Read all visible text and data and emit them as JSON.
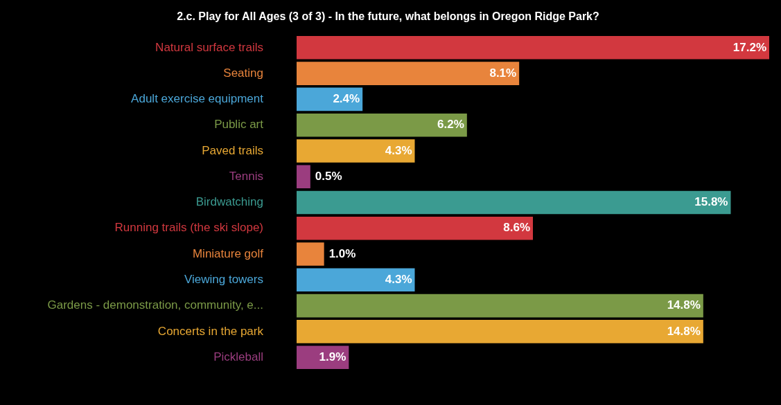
{
  "chart_data": {
    "type": "bar",
    "orientation": "horizontal",
    "title": "2.c. Play for All Ages (3 of 3) - In the future, what belongs in Oregon Ridge Park?",
    "categories": [
      "Natural surface trails",
      "Seating",
      "Adult exercise equipment",
      "Public art",
      "Paved trails",
      "Tennis",
      "Birdwatching",
      "Running trails (the ski slope)",
      "Miniature golf",
      "Viewing towers",
      "Gardens - demonstration, community, e...",
      "Concerts in the park",
      "Pickleball"
    ],
    "values": [
      17.2,
      8.1,
      2.4,
      6.2,
      4.3,
      0.5,
      15.8,
      8.6,
      1.0,
      4.3,
      14.8,
      14.8,
      1.9
    ],
    "value_labels": [
      "17.2%",
      "8.1%",
      "2.4%",
      "6.2%",
      "4.3%",
      "0.5%",
      "15.8%",
      "8.6%",
      "1.0%",
      "4.3%",
      "14.8%",
      "14.8%",
      "1.9%"
    ],
    "colors": [
      "#d2383f",
      "#e8843c",
      "#4ba7d9",
      "#7b9a47",
      "#e8a833",
      "#9b3d7f",
      "#3b9b91",
      "#d2383f",
      "#e8843c",
      "#4ba7d9",
      "#7b9a47",
      "#e8a833",
      "#9b3d7f"
    ],
    "legend": false
  }
}
